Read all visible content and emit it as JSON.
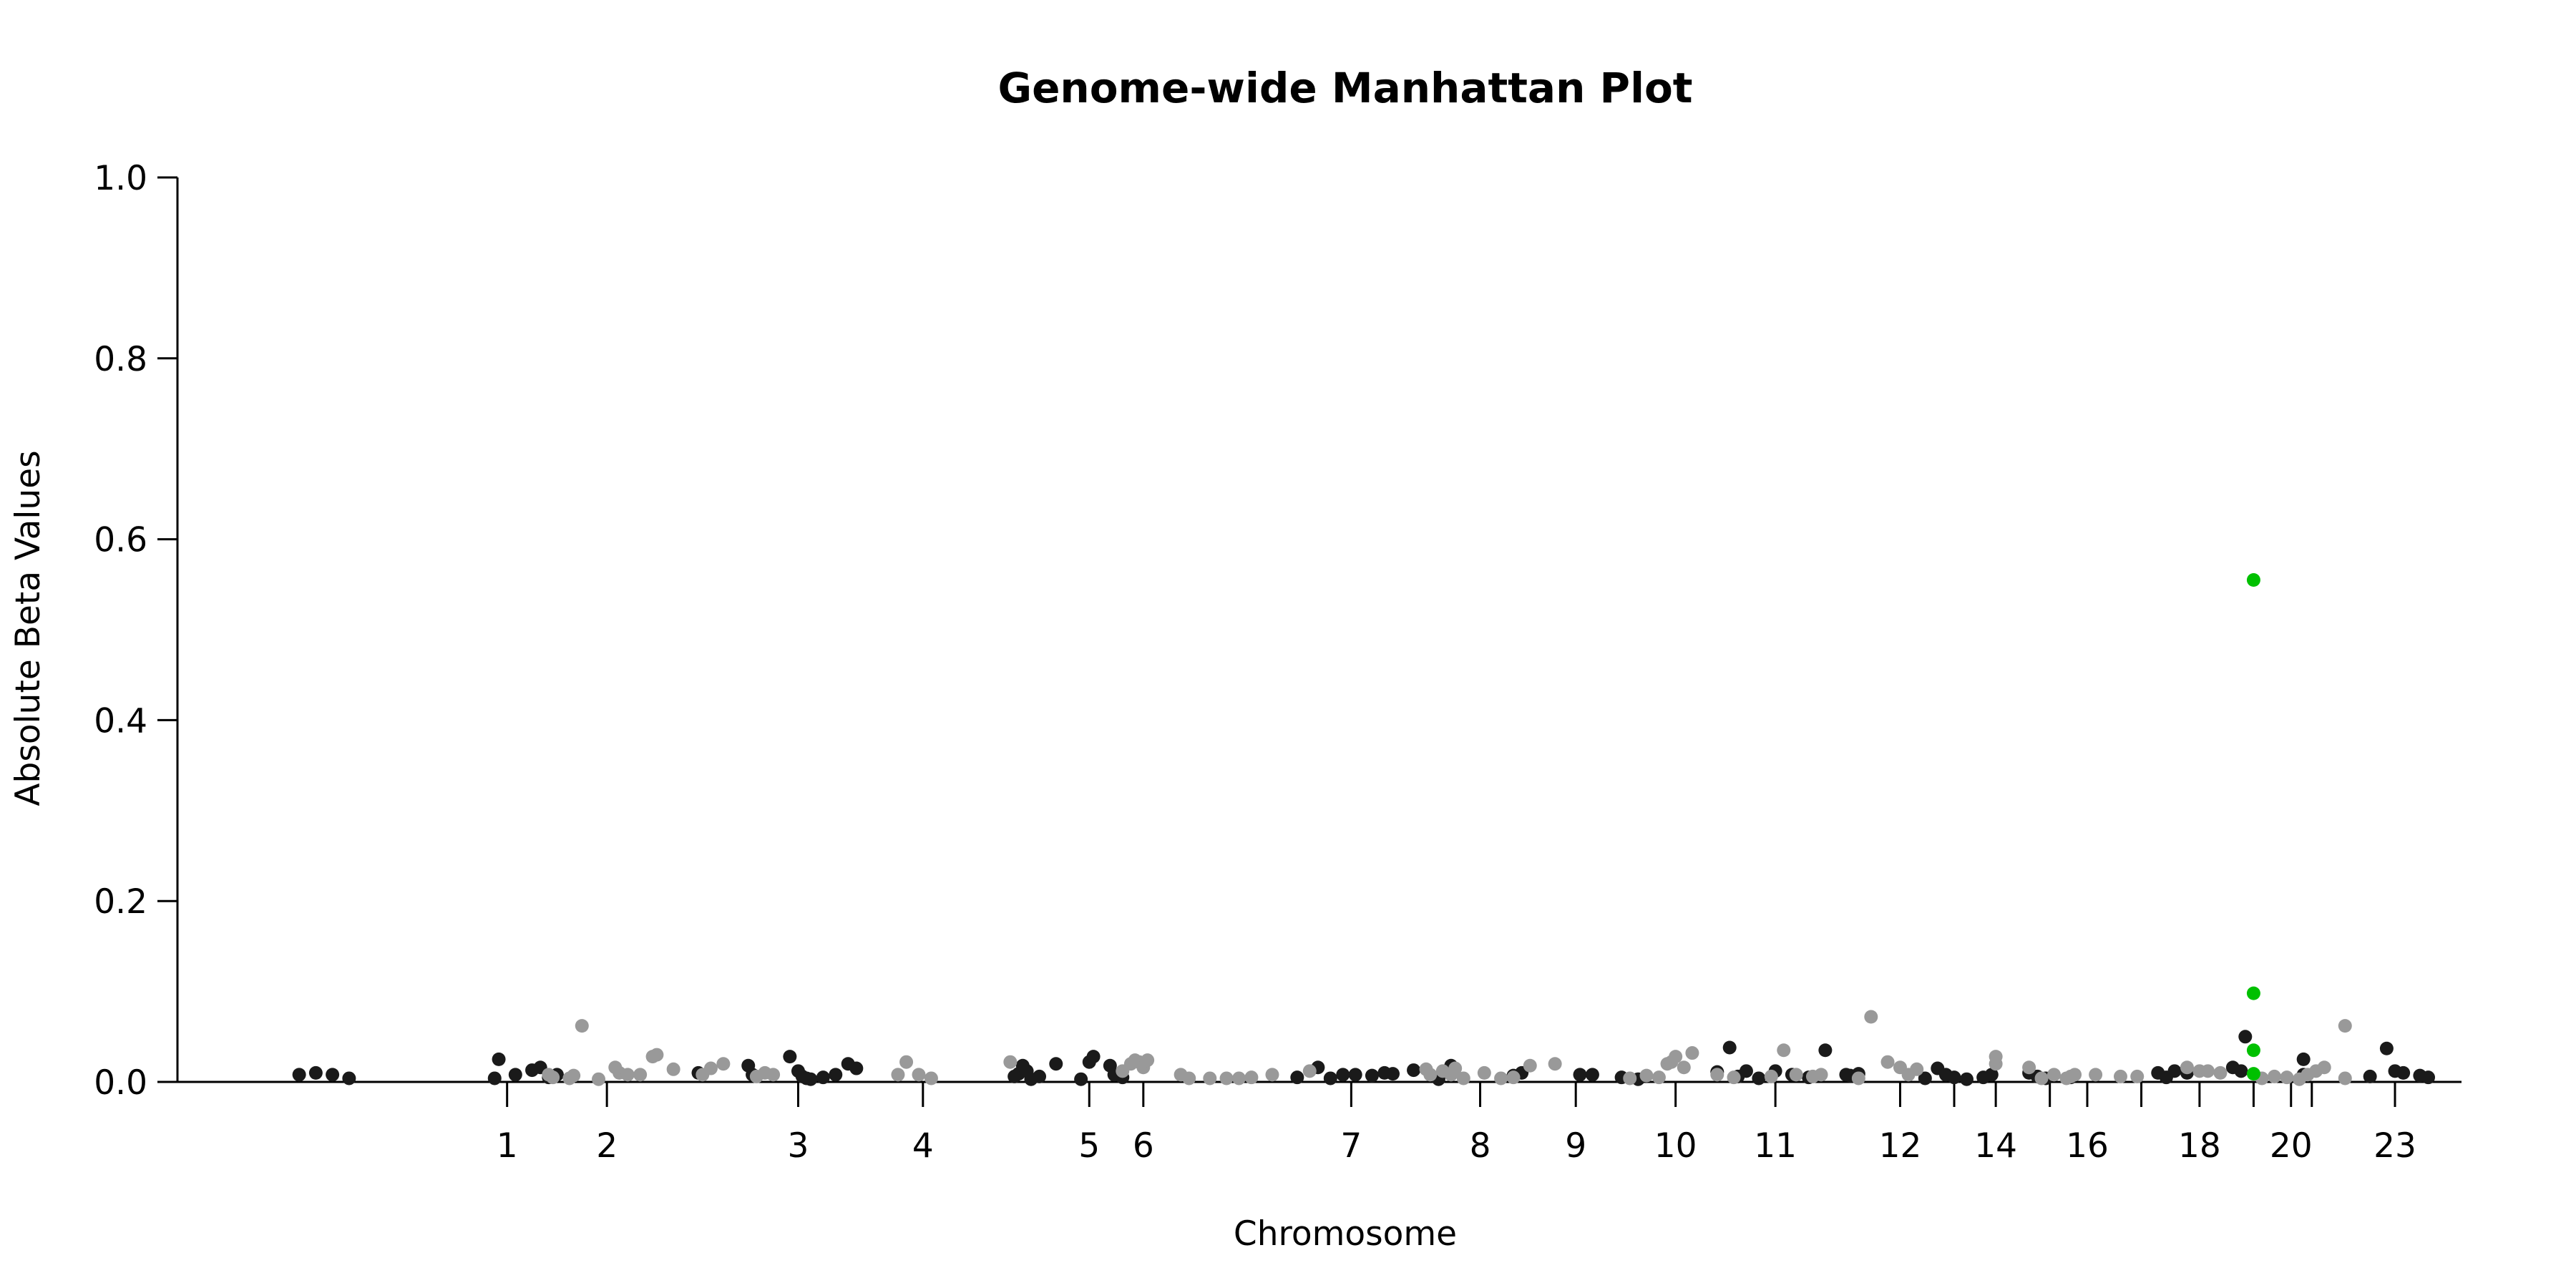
{
  "chart_data": {
    "type": "scatter",
    "title": "Genome-wide Manhattan Plot",
    "xlabel": "Chromosome",
    "ylabel": "Absolute Beta Values",
    "ylim": [
      0,
      1
    ],
    "y_ticks": [
      "0.0",
      "0.2",
      "0.4",
      "0.6",
      "0.8",
      "1.0"
    ],
    "grid": false,
    "legend": "none",
    "x_ticks": [
      {
        "label": "1",
        "x": 3.0
      },
      {
        "label": "2",
        "x": 4.2
      },
      {
        "label": "3",
        "x": 6.5
      },
      {
        "label": "4",
        "x": 8.0
      },
      {
        "label": "5",
        "x": 10.0
      },
      {
        "label": "6",
        "x": 10.65
      },
      {
        "label": "7",
        "x": 13.15
      },
      {
        "label": "8",
        "x": 14.7
      },
      {
        "label": "9",
        "x": 15.85
      },
      {
        "label": "10",
        "x": 17.05
      },
      {
        "label": "11",
        "x": 18.25
      },
      {
        "label": "12",
        "x": 19.75
      },
      {
        "label": "",
        "x": 20.4
      },
      {
        "label": "14",
        "x": 20.9
      },
      {
        "label": "",
        "x": 21.55
      },
      {
        "label": "16",
        "x": 22.0
      },
      {
        "label": "",
        "x": 22.65
      },
      {
        "label": "18",
        "x": 23.35
      },
      {
        "label": "",
        "x": 24.0
      },
      {
        "label": "20",
        "x": 24.45
      },
      {
        "label": "",
        "x": 24.7
      },
      {
        "label": "23",
        "x": 25.7
      }
    ],
    "xlim": [
      0,
      26.5
    ],
    "colors": {
      "dark": "#1a1a1a",
      "light": "#999999",
      "highlight": "#00c000"
    },
    "series": [
      {
        "color": "dark",
        "x": [
          0.5,
          0.7,
          0.9,
          1.1,
          2.85,
          2.9,
          3.1,
          3.3,
          3.4,
          3.5,
          3.6,
          5.3,
          5.9,
          5.95,
          6.4,
          6.5,
          6.55,
          6.6,
          6.65,
          6.8,
          6.95,
          7.1,
          7.2,
          9.1,
          9.15,
          9.2,
          9.25,
          9.3,
          9.4,
          9.6,
          9.9,
          10.0,
          10.05,
          10.25,
          10.3,
          10.4,
          12.5,
          12.75,
          12.9,
          13.05,
          13.2,
          13.4,
          13.55,
          13.65,
          13.9,
          14.2,
          14.35,
          15.1,
          15.2,
          15.9,
          16.05,
          16.4,
          16.6,
          17.55,
          17.7,
          17.8,
          17.9,
          18.05,
          18.25,
          18.45,
          18.65,
          18.85,
          19.1,
          19.15,
          19.25,
          20.05,
          20.2,
          20.3,
          20.4,
          20.55,
          20.75,
          20.85,
          21.3,
          21.4,
          21.5,
          21.8,
          22.85,
          22.95,
          23.05,
          23.2,
          23.75,
          23.85,
          23.9,
          24.6,
          24.6,
          25.4,
          25.6,
          25.7,
          25.8,
          26.0,
          26.1
        ],
        "y": [
          0.008,
          0.01,
          0.008,
          0.004,
          0.004,
          0.025,
          0.008,
          0.013,
          0.016,
          0.005,
          0.008,
          0.01,
          0.018,
          0.008,
          0.028,
          0.012,
          0.006,
          0.004,
          0.003,
          0.005,
          0.008,
          0.02,
          0.015,
          0.006,
          0.009,
          0.018,
          0.012,
          0.003,
          0.006,
          0.02,
          0.003,
          0.022,
          0.028,
          0.018,
          0.008,
          0.005,
          0.005,
          0.016,
          0.004,
          0.008,
          0.008,
          0.007,
          0.01,
          0.009,
          0.013,
          0.003,
          0.018,
          0.007,
          0.01,
          0.008,
          0.008,
          0.005,
          0.003,
          0.011,
          0.038,
          0.006,
          0.012,
          0.004,
          0.012,
          0.008,
          0.005,
          0.035,
          0.008,
          0.007,
          0.009,
          0.004,
          0.015,
          0.008,
          0.005,
          0.003,
          0.005,
          0.008,
          0.01,
          0.006,
          0.004,
          0.005,
          0.01,
          0.005,
          0.012,
          0.01,
          0.016,
          0.012,
          0.05,
          0.008,
          0.025,
          0.006,
          0.037,
          0.012,
          0.01,
          0.007,
          0.005
        ]
      },
      {
        "color": "light",
        "x": [
          3.5,
          3.55,
          3.75,
          3.8,
          3.9,
          4.1,
          4.3,
          4.35,
          4.45,
          4.6,
          4.75,
          4.8,
          5.0,
          5.35,
          5.45,
          5.6,
          6.0,
          6.1,
          6.2,
          7.7,
          7.8,
          7.95,
          8.1,
          9.05,
          10.4,
          10.5,
          10.55,
          10.6,
          10.65,
          10.7,
          11.1,
          11.2,
          11.45,
          11.65,
          11.8,
          11.95,
          12.2,
          12.65,
          14.05,
          14.1,
          14.25,
          14.35,
          14.4,
          14.5,
          14.75,
          14.95,
          15.1,
          15.3,
          15.6,
          16.5,
          16.7,
          16.85,
          16.95,
          17.0,
          17.05,
          17.15,
          17.25,
          17.55,
          17.75,
          18.2,
          18.35,
          18.5,
          18.7,
          18.8,
          19.25,
          19.4,
          19.6,
          19.75,
          19.85,
          19.95,
          20.9,
          20.9,
          21.3,
          21.45,
          21.6,
          21.75,
          21.8,
          21.85,
          22.1,
          22.4,
          22.6,
          23.2,
          23.35,
          23.45,
          23.6,
          24.1,
          24.25,
          24.4,
          24.55,
          24.65,
          24.75,
          24.85,
          25.1,
          25.1
        ],
        "y": [
          0.008,
          0.005,
          0.004,
          0.007,
          0.062,
          0.003,
          0.016,
          0.01,
          0.008,
          0.008,
          0.028,
          0.03,
          0.014,
          0.008,
          0.015,
          0.02,
          0.006,
          0.01,
          0.008,
          0.008,
          0.022,
          0.008,
          0.004,
          0.022,
          0.012,
          0.02,
          0.024,
          0.022,
          0.016,
          0.024,
          0.008,
          0.004,
          0.004,
          0.004,
          0.004,
          0.005,
          0.008,
          0.012,
          0.014,
          0.008,
          0.012,
          0.008,
          0.015,
          0.004,
          0.01,
          0.004,
          0.005,
          0.018,
          0.02,
          0.004,
          0.007,
          0.005,
          0.02,
          0.022,
          0.028,
          0.016,
          0.032,
          0.008,
          0.005,
          0.006,
          0.035,
          0.008,
          0.006,
          0.008,
          0.004,
          0.072,
          0.022,
          0.016,
          0.008,
          0.014,
          0.02,
          0.028,
          0.016,
          0.004,
          0.008,
          0.004,
          0.006,
          0.008,
          0.008,
          0.006,
          0.006,
          0.016,
          0.012,
          0.012,
          0.01,
          0.004,
          0.006,
          0.005,
          0.003,
          0.008,
          0.012,
          0.016,
          0.062,
          0.004
        ]
      },
      {
        "color": "highlight",
        "x": [
          24.0,
          24.0,
          24.0,
          24.0
        ],
        "y": [
          0.555,
          0.098,
          0.035,
          0.009
        ]
      }
    ]
  }
}
